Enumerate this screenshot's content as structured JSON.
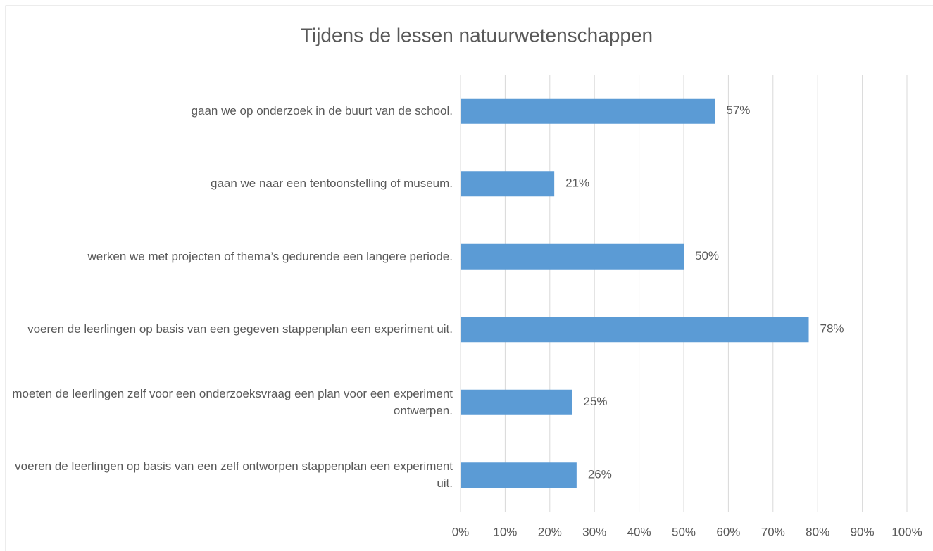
{
  "chart_data": {
    "type": "bar",
    "orientation": "horizontal",
    "title": "Tijdens de lessen natuurwetenschappen",
    "categories": [
      "gaan we op onderzoek in de buurt van de school.",
      "gaan we naar een tentoonstelling of museum.",
      "werken we met projecten of thema’s gedurende een langere periode.",
      "voeren de leerlingen op basis van een gegeven stappenplan een experiment uit.",
      "moeten de leerlingen zelf voor een onderzoeksvraag een plan voor een experiment ontwerpen.",
      "voeren de leerlingen op basis van een zelf ontworpen stappenplan een experiment uit."
    ],
    "values": [
      57,
      21,
      50,
      78,
      25,
      26
    ],
    "value_labels": [
      "57%",
      "21%",
      "50%",
      "78%",
      "25%",
      "26%"
    ],
    "color": "#5b9bd5",
    "xlim": [
      0,
      100
    ],
    "xticks": [
      {
        "value": 0,
        "label": "0%"
      },
      {
        "value": 10,
        "label": "10%"
      },
      {
        "value": 20,
        "label": "20%"
      },
      {
        "value": 30,
        "label": "30%"
      },
      {
        "value": 40,
        "label": "40%"
      },
      {
        "value": 50,
        "label": "50%"
      },
      {
        "value": 60,
        "label": "60%"
      },
      {
        "value": 70,
        "label": "70%"
      },
      {
        "value": 80,
        "label": "80%"
      },
      {
        "value": 90,
        "label": "90%"
      },
      {
        "value": 100,
        "label": "100%"
      }
    ],
    "grid": true
  }
}
